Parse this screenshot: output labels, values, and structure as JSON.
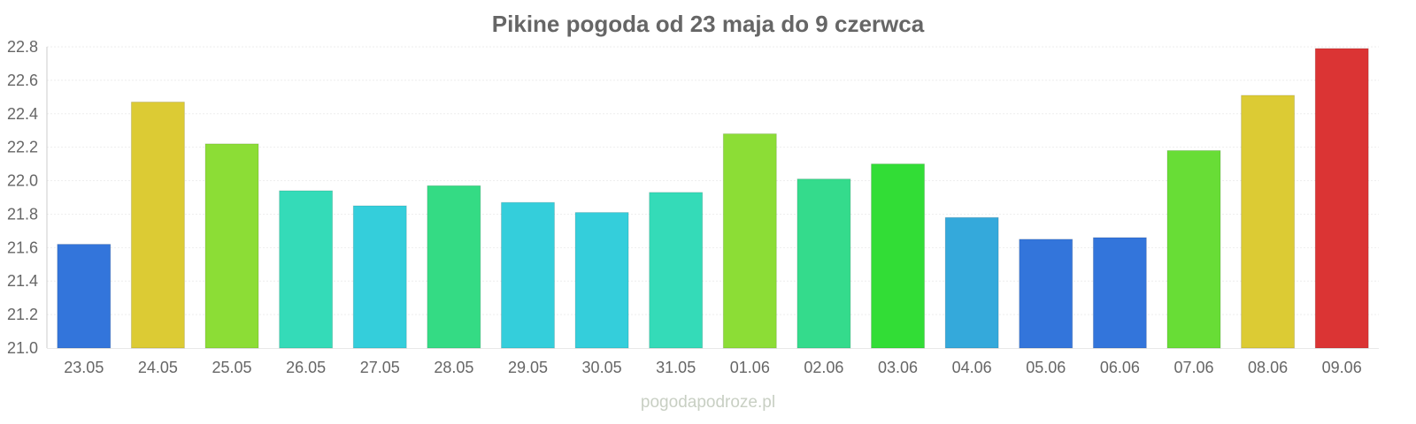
{
  "chart_data": {
    "type": "bar",
    "title": "Pikine pogoda od 23 maja do 9 czerwca",
    "categories": [
      "23.05",
      "24.05",
      "25.05",
      "26.05",
      "27.05",
      "28.05",
      "29.05",
      "30.05",
      "31.05",
      "01.06",
      "02.06",
      "03.06",
      "04.06",
      "05.06",
      "06.06",
      "07.06",
      "08.06",
      "09.06"
    ],
    "values": [
      21.62,
      22.47,
      22.22,
      21.94,
      21.85,
      21.97,
      21.87,
      21.81,
      21.93,
      22.28,
      22.01,
      22.1,
      21.78,
      21.65,
      21.66,
      22.18,
      22.51,
      22.79
    ],
    "colors": [
      "#3375db",
      "#dccb34",
      "#8cdd36",
      "#34dbb8",
      "#34cedb",
      "#34db84",
      "#34cedb",
      "#34cedb",
      "#34dbb8",
      "#8cdd36",
      "#34db8c",
      "#32dd36",
      "#34a9db",
      "#3375db",
      "#3375db",
      "#68dd36",
      "#dccb34",
      "#db3434"
    ],
    "y_ticks": [
      "21.0",
      "21.2",
      "21.4",
      "21.6",
      "21.8",
      "22.0",
      "22.2",
      "22.4",
      "22.6",
      "22.8"
    ],
    "ylim": [
      21.0,
      22.8
    ],
    "xlabel": "",
    "ylabel": "",
    "grid": true
  },
  "watermark": "pogodapodroze.pl"
}
